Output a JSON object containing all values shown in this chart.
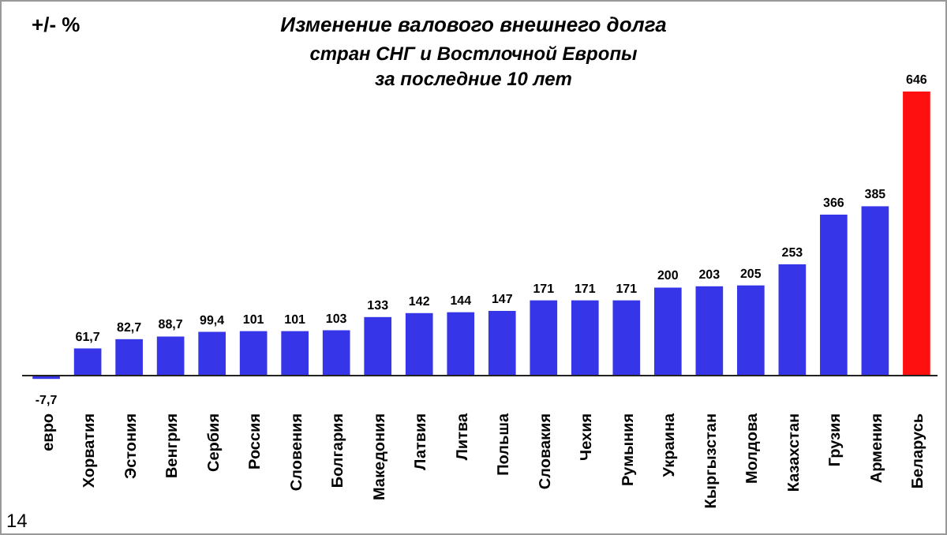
{
  "chart_data": {
    "type": "bar",
    "title": "Изменение валового  внешнего долга",
    "subtitle": "стран СНГ и Востлочной  Европы\nза последние  10 лет",
    "ylabel": "+/- %",
    "categories": [
      "евро",
      "Хорватия",
      "Эстония",
      "Венгрия",
      "Сербия",
      "Россия",
      "Словения",
      "Болгария",
      "Македония",
      "Латвия",
      "Литва",
      "Польша",
      "Словакия",
      "Чехия",
      "Румыния",
      "Украина",
      "Кыргызстан",
      "Молдова",
      "Казахстан",
      "Грузия",
      "Армения",
      "Беларусь"
    ],
    "values": [
      -7.7,
      61.7,
      82.7,
      88.7,
      99.4,
      101,
      101,
      103,
      133,
      142,
      144,
      147,
      171,
      171,
      171,
      200,
      203,
      205,
      253,
      366,
      385,
      646
    ],
    "value_labels": [
      "-7,7",
      "61,7",
      "82,7",
      "88,7",
      "99,4",
      "101",
      "101",
      "103",
      "133",
      "142",
      "144",
      "147",
      "171",
      "171",
      "171",
      "200",
      "203",
      "205",
      "253",
      "366",
      "385",
      "646"
    ],
    "colors": [
      "#3636e8",
      "#3636e8",
      "#3636e8",
      "#3636e8",
      "#3636e8",
      "#3636e8",
      "#3636e8",
      "#3636e8",
      "#3636e8",
      "#3636e8",
      "#3636e8",
      "#3636e8",
      "#3636e8",
      "#3636e8",
      "#3636e8",
      "#3636e8",
      "#3636e8",
      "#3636e8",
      "#3636e8",
      "#3636e8",
      "#3636e8",
      "#ff1010"
    ],
    "annotations": [
      "14"
    ]
  }
}
